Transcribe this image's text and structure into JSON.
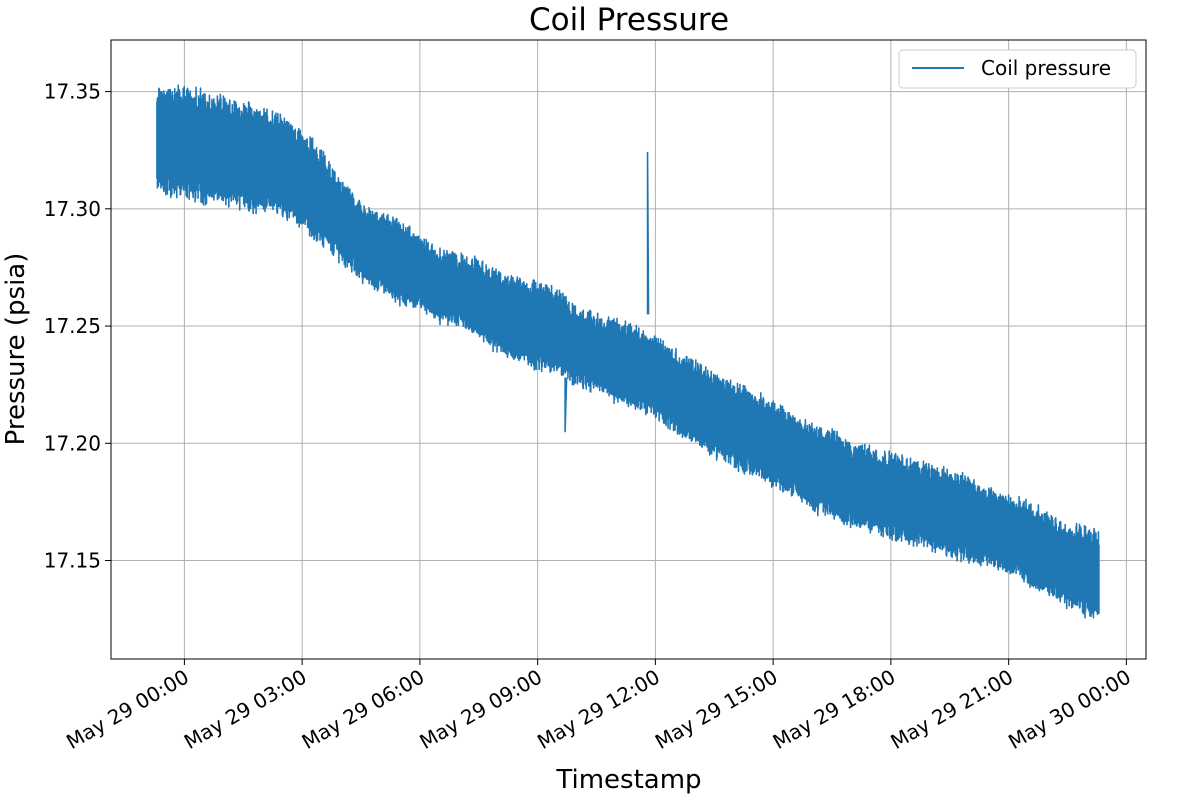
{
  "chart_data": {
    "type": "line",
    "title": "Coil Pressure",
    "xlabel": "Timestamp",
    "ylabel": "Pressure (psia)",
    "x_tick_labels": [
      "May 29 00:00",
      "May 29 03:00",
      "May 29 06:00",
      "May 29 09:00",
      "May 29 12:00",
      "May 29 15:00",
      "May 29 18:00",
      "May 29 21:00",
      "May 30 00:00"
    ],
    "x_tick_hours": [
      0,
      3,
      6,
      9,
      12,
      15,
      18,
      21,
      24
    ],
    "xlim_hours": [
      -1.87,
      24.5
    ],
    "y_ticks": [
      17.15,
      17.2,
      17.25,
      17.3,
      17.35
    ],
    "y_tick_labels": [
      "17.15",
      "17.20",
      "17.25",
      "17.30",
      "17.35"
    ],
    "ylim": [
      17.108,
      17.372
    ],
    "grid": true,
    "legend_position": "top-right",
    "series": [
      {
        "name": "Coil pressure",
        "color": "#1f77b4",
        "x_hours": [
          -0.7,
          0.0,
          0.5,
          1.0,
          1.5,
          2.0,
          2.5,
          3.0,
          3.5,
          4.0,
          4.5,
          5.0,
          5.5,
          6.0,
          6.5,
          7.0,
          7.5,
          8.0,
          8.5,
          9.0,
          9.5,
          10.0,
          10.5,
          11.0,
          11.5,
          12.0,
          12.5,
          13.0,
          13.5,
          14.0,
          14.5,
          15.0,
          15.5,
          16.0,
          16.5,
          17.0,
          17.5,
          18.0,
          18.5,
          19.0,
          19.5,
          20.0,
          20.5,
          21.0,
          21.5,
          22.0,
          22.5,
          23.3
        ],
        "upper": [
          17.352,
          17.352,
          17.35,
          17.348,
          17.345,
          17.342,
          17.34,
          17.333,
          17.325,
          17.312,
          17.302,
          17.298,
          17.295,
          17.288,
          17.282,
          17.28,
          17.278,
          17.273,
          17.27,
          17.268,
          17.265,
          17.258,
          17.255,
          17.252,
          17.25,
          17.245,
          17.24,
          17.235,
          17.23,
          17.225,
          17.222,
          17.218,
          17.212,
          17.208,
          17.205,
          17.2,
          17.198,
          17.195,
          17.192,
          17.19,
          17.188,
          17.185,
          17.18,
          17.178,
          17.175,
          17.17,
          17.165,
          17.162
        ],
        "lower": [
          17.306,
          17.305,
          17.303,
          17.302,
          17.3,
          17.299,
          17.297,
          17.293,
          17.285,
          17.278,
          17.27,
          17.265,
          17.26,
          17.258,
          17.252,
          17.25,
          17.245,
          17.238,
          17.235,
          17.232,
          17.23,
          17.225,
          17.222,
          17.218,
          17.215,
          17.212,
          17.205,
          17.2,
          17.195,
          17.19,
          17.186,
          17.182,
          17.178,
          17.172,
          17.168,
          17.165,
          17.162,
          17.16,
          17.158,
          17.155,
          17.152,
          17.15,
          17.148,
          17.145,
          17.14,
          17.136,
          17.13,
          17.125
        ],
        "spike": {
          "x_hour": 11.8,
          "y": 17.324,
          "base": 17.255
        },
        "dip": {
          "x_hour": 9.7,
          "y": 17.205
        }
      }
    ]
  }
}
